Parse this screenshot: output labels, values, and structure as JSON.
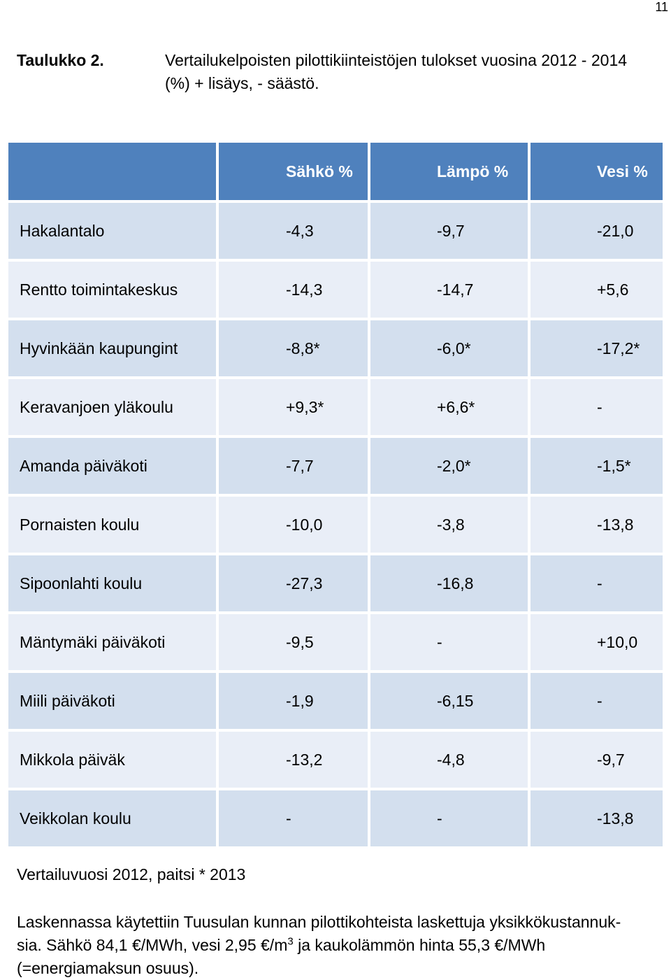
{
  "page_number": "11",
  "caption": {
    "label": "Taulukko 2.",
    "line1": "Vertailukelpoisten pilottikiinteistöjen tulokset vuosina 2012 - 2014",
    "line2": "(%) + lisäys, - säästö."
  },
  "table": {
    "headers": [
      "",
      "Sähkö %",
      "Lämpö  %",
      "Vesi %"
    ],
    "rows": [
      [
        "Hakalantalo",
        "-4,3",
        "-9,7",
        "-21,0"
      ],
      [
        "Rentto toimintakeskus",
        "-14,3",
        "-14,7",
        "+5,6"
      ],
      [
        "Hyvinkään kaupungint",
        "-8,8*",
        "-6,0*",
        "-17,2*"
      ],
      [
        "Keravanjoen yläkoulu",
        "+9,3*",
        "+6,6*",
        "-"
      ],
      [
        "Amanda päiväkoti",
        "-7,7",
        "-2,0*",
        "-1,5*"
      ],
      [
        "Pornaisten koulu",
        "-10,0",
        "-3,8",
        "-13,8"
      ],
      [
        "Sipoonlahti koulu",
        "-27,3",
        "-16,8",
        "-"
      ],
      [
        "Mäntymäki päiväkoti",
        "-9,5",
        "-",
        "+10,0"
      ],
      [
        "Miili päiväkoti",
        "-1,9",
        "-6,15",
        "-"
      ],
      [
        "Mikkola päiväk",
        "-13,2",
        "-4,8",
        "-9,7"
      ],
      [
        "Veikkolan koulu",
        "-",
        "-",
        "-13,8"
      ]
    ]
  },
  "notes": {
    "reference_year": "Vertailuvuosi 2012, paitsi * 2013",
    "calc_line1": "Laskennassa käytettiin Tuusulan kunnan pilottikohteista laskettuja yksikkökustannuk-",
    "calc_line2_a": "sia. Sähkö 84,1 €/MWh, vesi 2,95 €/m",
    "calc_line2_sup": "3",
    "calc_line2_b": " ja kaukolämmön hinta 55,3 €/MWh",
    "calc_line3": "(=energiamaksun osuus)."
  },
  "colors": {
    "header_bg": "#4f81bd",
    "row_dark": "#d3dfee",
    "row_light": "#e9eef7"
  }
}
